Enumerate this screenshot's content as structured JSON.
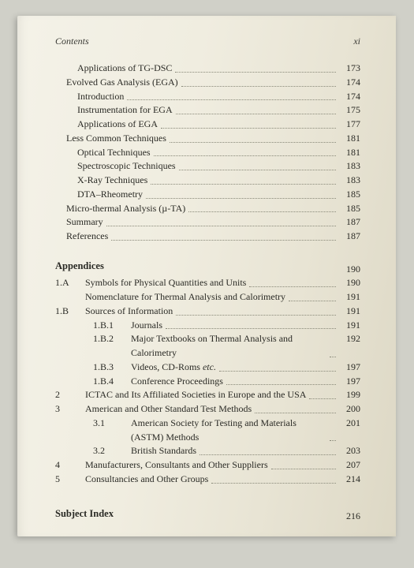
{
  "header": {
    "left": "Contents",
    "right": "xi"
  },
  "toc": [
    {
      "indent": 2,
      "title": "Applications of TG-DSC",
      "page": "173"
    },
    {
      "indent": 1,
      "title": "Evolved Gas Analysis (EGA)",
      "page": "174"
    },
    {
      "indent": 2,
      "title": "Introduction",
      "page": "174"
    },
    {
      "indent": 2,
      "title": "Instrumentation for EGA",
      "page": "175"
    },
    {
      "indent": 2,
      "title": "Applications of EGA",
      "page": "177"
    },
    {
      "indent": 1,
      "title": "Less Common Techniques",
      "page": "181"
    },
    {
      "indent": 2,
      "title": "Optical Techniques",
      "page": "181"
    },
    {
      "indent": 2,
      "title": "Spectroscopic Techniques",
      "page": "183"
    },
    {
      "indent": 2,
      "title": "X-Ray Techniques",
      "page": "183"
    },
    {
      "indent": 2,
      "title": "DTA–Rheometry",
      "page": "185"
    },
    {
      "indent": 1,
      "title": "Micro-thermal Analysis (µ-TA)",
      "page": "185"
    },
    {
      "indent": 1,
      "title": "Summary",
      "page": "187"
    },
    {
      "indent": 1,
      "title": "References",
      "page": "187"
    }
  ],
  "appendices_head": {
    "title": "Appendices",
    "page": "190"
  },
  "appendices": [
    {
      "num": "1.A",
      "title": "Symbols for Physical Quantities and Units",
      "page": "190"
    },
    {
      "num": "",
      "title": "Nomenclature for Thermal Analysis and Calorimetry",
      "page": "191"
    },
    {
      "num": "1.B",
      "title": "Sources of Information",
      "page": "191"
    },
    {
      "num": "",
      "sub": "1.B.1",
      "title": "Journals",
      "page": "191"
    },
    {
      "num": "",
      "sub": "1.B.2",
      "title": "Major Textbooks on Thermal Analysis and Calorimetry",
      "page": "192"
    },
    {
      "num": "",
      "sub": "1.B.3",
      "title": "Videos, CD-Roms etc.",
      "page": "197",
      "etc_italic": true
    },
    {
      "num": "",
      "sub": "1.B.4",
      "title": "Conference Proceedings",
      "page": "197"
    },
    {
      "num": "2",
      "title": "ICTAC and Its Affiliated Societies in Europe and the USA",
      "page": "199"
    },
    {
      "num": "3",
      "title": "American and Other Standard Test Methods",
      "page": "200"
    },
    {
      "num": "",
      "sub": "3.1",
      "title": "American Society for Testing and Materials (ASTM) Methods",
      "page": "201"
    },
    {
      "num": "",
      "sub": "3.2",
      "title": "British Standards",
      "page": "203"
    },
    {
      "num": "4",
      "title": "Manufacturers, Consultants and Other Suppliers",
      "page": "207"
    },
    {
      "num": "5",
      "title": "Consultancies and Other Groups",
      "page": "214"
    }
  ],
  "subject_index": {
    "title": "Subject Index",
    "page": "216"
  }
}
